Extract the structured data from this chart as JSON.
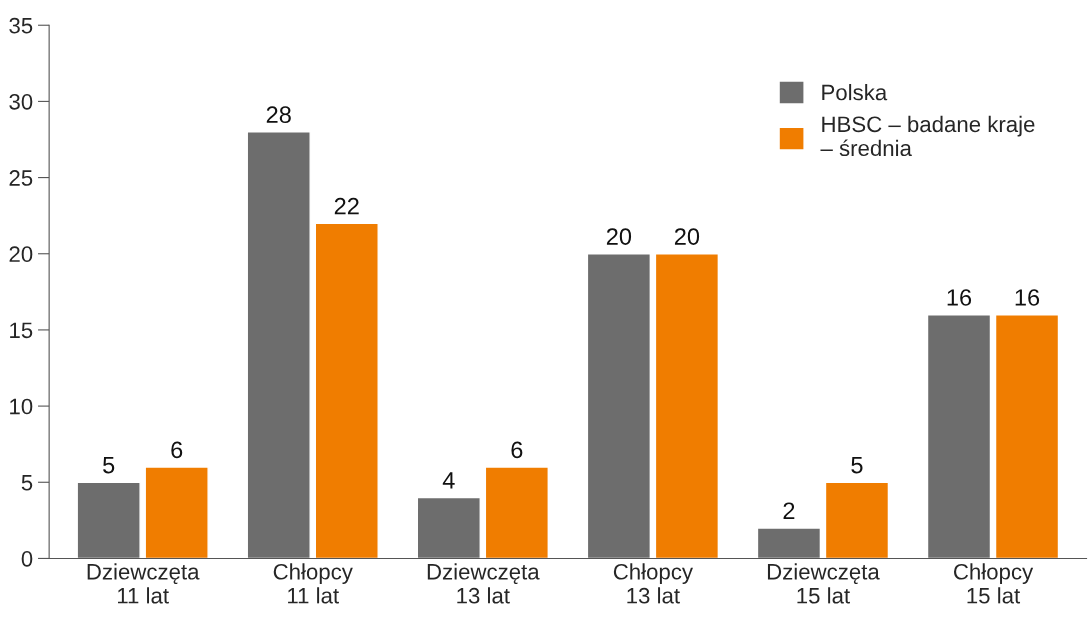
{
  "chart_data": {
    "type": "bar",
    "categories": [
      "Dziewczęta\n11 lat",
      "Chłopcy\n11 lat",
      "Dziewczęta\n13 lat",
      "Chłopcy\n13 lat",
      "Dziewczęta\n15 lat",
      "Chłopcy\n15 lat"
    ],
    "series": [
      {
        "name": "Polska",
        "color": "#6d6d6d",
        "values": [
          5,
          28,
          4,
          20,
          2,
          16
        ]
      },
      {
        "name": "HBSC – badane kraje\n– średnia",
        "color": "#f07d00",
        "values": [
          6,
          22,
          6,
          20,
          5,
          16
        ]
      }
    ],
    "ylim": [
      0,
      35
    ],
    "yticks": [
      0,
      5,
      10,
      15,
      20,
      25,
      30,
      35
    ],
    "data_labels": true,
    "legend": "top right",
    "grid": false
  }
}
